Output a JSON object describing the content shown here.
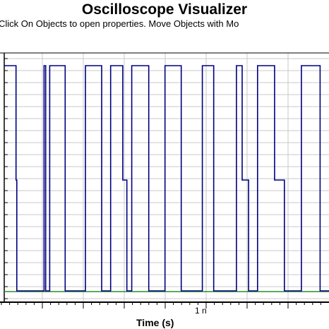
{
  "header": {
    "title": "Oscilloscope Visualizer",
    "hint": "Click On Objects to open properties.  Move Objects with Mo"
  },
  "colors": {
    "signal": "#000080",
    "baseline": "#2e8b2e",
    "grid": "#c8c8c8",
    "axis": "#000000"
  },
  "chart_data": {
    "type": "line",
    "title": "Oscilloscope Visualizer",
    "xlabel": "Time (s)",
    "ylabel": "",
    "x_tick_labels": [
      "1 n"
    ],
    "grid": true,
    "series": [
      {
        "values": "square-wave pulse train (high/low levels)",
        "segments": [
          [
            0.0,
            0.29,
            "high"
          ],
          [
            0.29,
            0.31,
            "mid"
          ],
          [
            0.31,
            0.98,
            "low"
          ],
          [
            0.98,
            1.02,
            "high"
          ],
          [
            1.02,
            1.12,
            "low"
          ],
          [
            1.12,
            1.5,
            "high"
          ],
          [
            1.5,
            2.0,
            "low"
          ],
          [
            2.0,
            2.4,
            "high"
          ],
          [
            2.4,
            2.62,
            "low"
          ],
          [
            2.62,
            2.92,
            "high"
          ],
          [
            2.92,
            3.02,
            "mid"
          ],
          [
            3.02,
            3.14,
            "low"
          ],
          [
            3.14,
            3.56,
            "high"
          ],
          [
            3.56,
            3.96,
            "low"
          ],
          [
            3.96,
            4.36,
            "high"
          ],
          [
            4.36,
            4.88,
            "low"
          ],
          [
            4.88,
            5.16,
            "high"
          ],
          [
            5.16,
            5.72,
            "low"
          ],
          [
            5.72,
            5.86,
            "high"
          ],
          [
            5.86,
            6.02,
            "mid"
          ],
          [
            6.02,
            6.24,
            "low"
          ],
          [
            6.24,
            6.66,
            "high"
          ],
          [
            6.66,
            6.9,
            "mid"
          ],
          [
            6.9,
            7.32,
            "low"
          ],
          [
            7.32,
            7.78,
            "high"
          ],
          [
            7.78,
            8.0,
            "low"
          ]
        ]
      }
    ]
  }
}
